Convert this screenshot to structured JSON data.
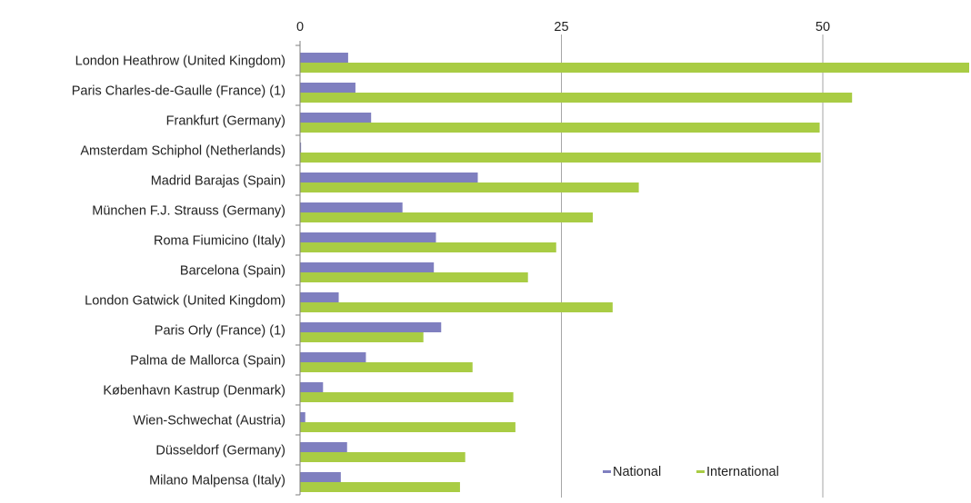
{
  "chart_data": {
    "type": "bar",
    "orientation": "horizontal",
    "categories": [
      "London Heathrow (United Kingdom)",
      "Paris Charles-de-Gaulle (France) (1)",
      "Frankfurt (Germany)",
      "Amsterdam Schiphol (Netherlands)",
      "Madrid Barajas (Spain)",
      "München F.J. Strauss (Germany)",
      "Roma Fiumicino (Italy)",
      "Barcelona (Spain)",
      "London Gatwick (United Kingdom)",
      "Paris Orly (France) (1)",
      "Palma de Mallorca (Spain)",
      "København Kastrup (Denmark)",
      "Wien-Schwechat (Austria)",
      "Düsseldorf (Germany)",
      "Milano Malpensa (Italy)"
    ],
    "series": [
      {
        "name": "National",
        "color": "#7f7fbf",
        "values": [
          4.6,
          5.3,
          6.8,
          0.1,
          17.0,
          9.8,
          13.0,
          12.8,
          3.7,
          13.5,
          6.3,
          2.2,
          0.5,
          4.5,
          3.9
        ]
      },
      {
        "name": "International",
        "color": "#a9cc44",
        "values": [
          64.0,
          52.8,
          49.7,
          49.8,
          32.4,
          28.0,
          24.5,
          21.8,
          29.9,
          11.8,
          16.5,
          20.4,
          20.6,
          15.8,
          15.3
        ]
      }
    ],
    "xlim": [
      0,
      64
    ],
    "xticks": [
      "0",
      "25",
      "50"
    ],
    "xtick_values": [
      0,
      25,
      50
    ],
    "grid": true,
    "legend_position": "bottom-right",
    "title": "",
    "xlabel": "",
    "ylabel": ""
  }
}
